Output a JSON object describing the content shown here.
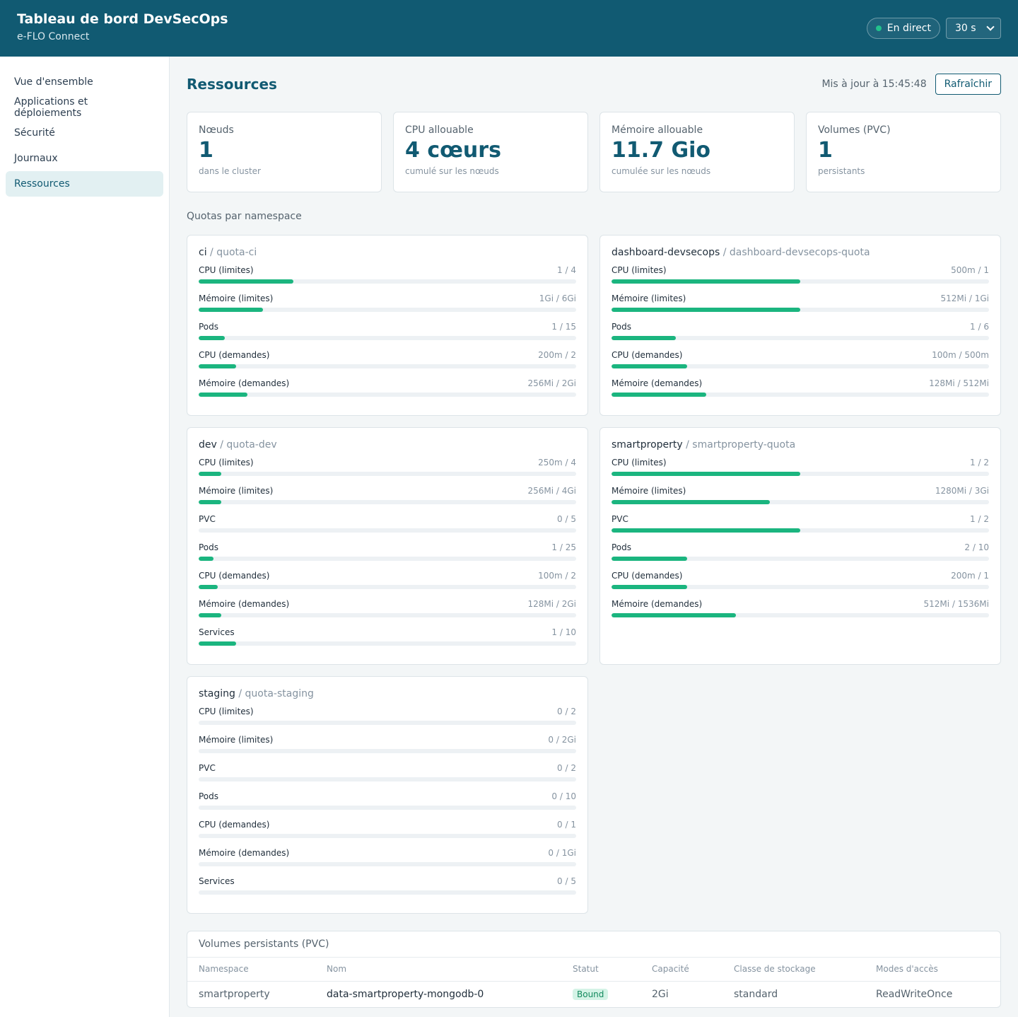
{
  "header": {
    "title": "Tableau de bord DevSecOps",
    "subtitle": "e-FLO Connect",
    "live_label": "En direct",
    "interval_value": "30 s"
  },
  "sidebar": {
    "items": [
      {
        "label": "Vue d'ensemble"
      },
      {
        "label": "Applications et déploiements"
      },
      {
        "label": "Sécurité"
      },
      {
        "label": "Journaux"
      },
      {
        "label": "Ressources",
        "active": true
      }
    ]
  },
  "page": {
    "title": "Ressources",
    "updated": "Mis à jour à 15:45:48",
    "refresh_label": "Rafraîchir"
  },
  "stats": [
    {
      "label": "Nœuds",
      "value": "1",
      "hint": "dans le cluster"
    },
    {
      "label": "CPU allouable",
      "value": "4 cœurs",
      "hint": "cumulé sur les nœuds"
    },
    {
      "label": "Mémoire allouable",
      "value": "11.7 Gio",
      "hint": "cumulée sur les nœuds"
    },
    {
      "label": "Volumes (PVC)",
      "value": "1",
      "hint": "persistants"
    }
  ],
  "quotas_section_label": "Quotas par namespace",
  "quotas": [
    {
      "namespace": "ci",
      "quota": "/ quota-ci",
      "rows": [
        {
          "label": "CPU (limites)",
          "value": "1 / 4",
          "fraction": 0.25
        },
        {
          "label": "Mémoire (limites)",
          "value": "1Gi / 6Gi",
          "fraction": 0.17
        },
        {
          "label": "Pods",
          "value": "1 / 15",
          "fraction": 0.07
        },
        {
          "label": "CPU (demandes)",
          "value": "200m / 2",
          "fraction": 0.1
        },
        {
          "label": "Mémoire (demandes)",
          "value": "256Mi / 2Gi",
          "fraction": 0.13
        }
      ]
    },
    {
      "namespace": "dashboard-devsecops",
      "quota": "/ dashboard-devsecops-quota",
      "rows": [
        {
          "label": "CPU (limites)",
          "value": "500m / 1",
          "fraction": 0.5
        },
        {
          "label": "Mémoire (limites)",
          "value": "512Mi / 1Gi",
          "fraction": 0.5
        },
        {
          "label": "Pods",
          "value": "1 / 6",
          "fraction": 0.17
        },
        {
          "label": "CPU (demandes)",
          "value": "100m / 500m",
          "fraction": 0.2
        },
        {
          "label": "Mémoire (demandes)",
          "value": "128Mi / 512Mi",
          "fraction": 0.25
        }
      ]
    },
    {
      "namespace": "dev",
      "quota": "/ quota-dev",
      "rows": [
        {
          "label": "CPU (limites)",
          "value": "250m / 4",
          "fraction": 0.06
        },
        {
          "label": "Mémoire (limites)",
          "value": "256Mi / 4Gi",
          "fraction": 0.06
        },
        {
          "label": "PVC",
          "value": "0 / 5",
          "fraction": 0
        },
        {
          "label": "Pods",
          "value": "1 / 25",
          "fraction": 0.04
        },
        {
          "label": "CPU (demandes)",
          "value": "100m / 2",
          "fraction": 0.05
        },
        {
          "label": "Mémoire (demandes)",
          "value": "128Mi / 2Gi",
          "fraction": 0.06
        },
        {
          "label": "Services",
          "value": "1 / 10",
          "fraction": 0.1
        }
      ]
    },
    {
      "namespace": "smartproperty",
      "quota": "/ smartproperty-quota",
      "rows": [
        {
          "label": "CPU (limites)",
          "value": "1 / 2",
          "fraction": 0.5
        },
        {
          "label": "Mémoire (limites)",
          "value": "1280Mi / 3Gi",
          "fraction": 0.42
        },
        {
          "label": "PVC",
          "value": "1 / 2",
          "fraction": 0.5
        },
        {
          "label": "Pods",
          "value": "2 / 10",
          "fraction": 0.2
        },
        {
          "label": "CPU (demandes)",
          "value": "200m / 1",
          "fraction": 0.2
        },
        {
          "label": "Mémoire (demandes)",
          "value": "512Mi / 1536Mi",
          "fraction": 0.33
        }
      ]
    },
    {
      "namespace": "staging",
      "quota": "/ quota-staging",
      "rows": [
        {
          "label": "CPU (limites)",
          "value": "0 / 2",
          "fraction": 0
        },
        {
          "label": "Mémoire (limites)",
          "value": "0 / 2Gi",
          "fraction": 0
        },
        {
          "label": "PVC",
          "value": "0 / 2",
          "fraction": 0
        },
        {
          "label": "Pods",
          "value": "0 / 10",
          "fraction": 0
        },
        {
          "label": "CPU (demandes)",
          "value": "0 / 1",
          "fraction": 0
        },
        {
          "label": "Mémoire (demandes)",
          "value": "0 / 1Gi",
          "fraction": 0
        },
        {
          "label": "Services",
          "value": "0 / 5",
          "fraction": 0
        }
      ]
    }
  ],
  "pvc_table": {
    "title": "Volumes persistants (PVC)",
    "columns": [
      "Namespace",
      "Nom",
      "Statut",
      "Capacité",
      "Classe de stockage",
      "Modes d'accès"
    ],
    "rows": [
      {
        "namespace": "smartproperty",
        "name": "data-smartproperty-mongodb-0",
        "status": "Bound",
        "capacity": "2Gi",
        "storage_class": "standard",
        "access_modes": "ReadWriteOnce"
      }
    ]
  },
  "colors": {
    "header_bg": "#115a72",
    "bar_fill": "#1bb57f",
    "bound_badge": "#d4f3e6"
  }
}
